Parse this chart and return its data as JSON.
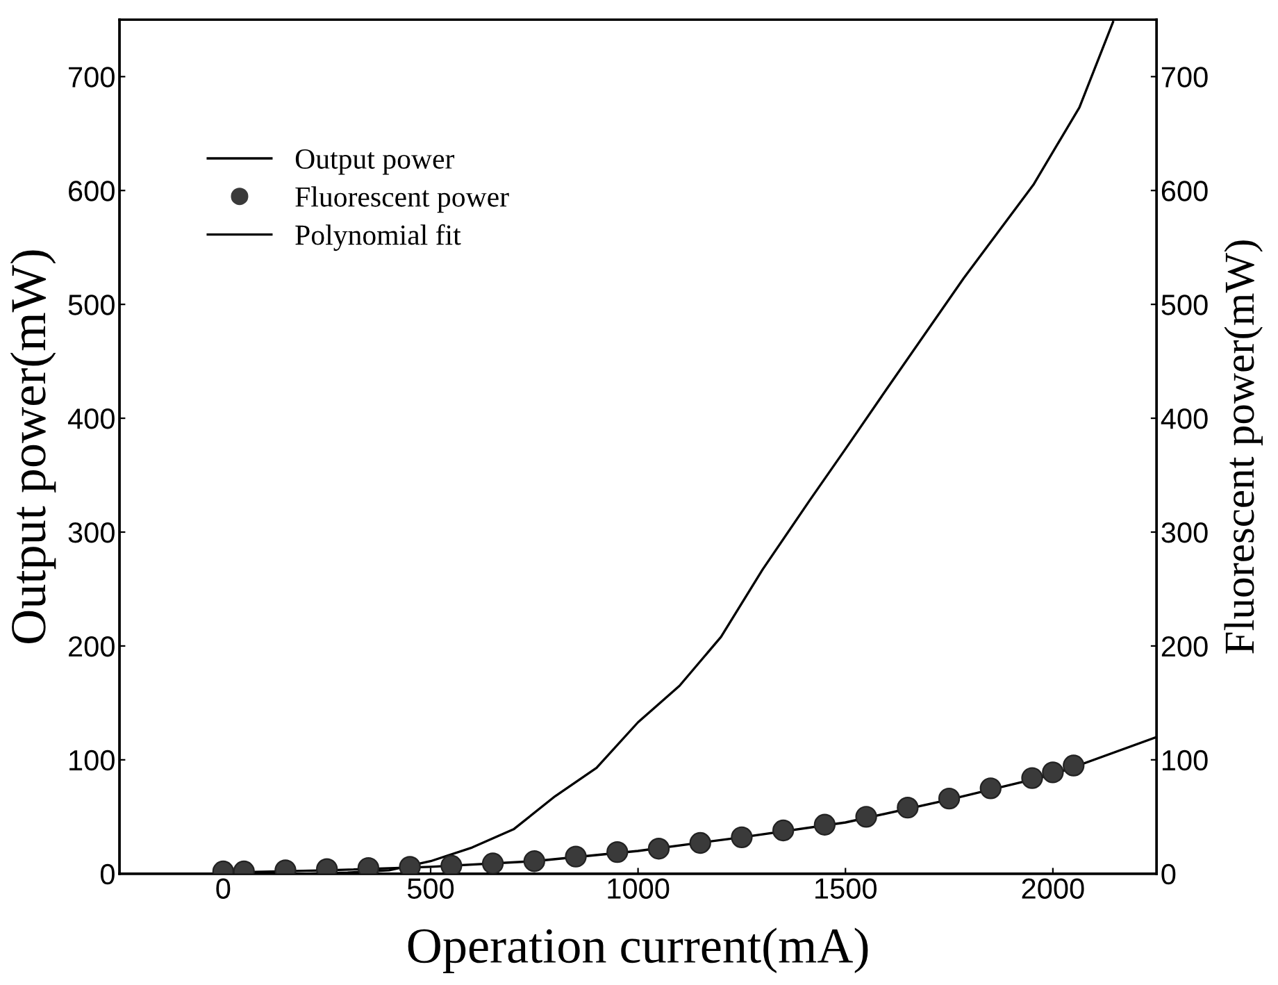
{
  "chart_data": {
    "type": "line",
    "xlabel": "Operation current(mA)",
    "ylabel": "Output power(mW)",
    "y2label": "Fluorescent power(mW)",
    "xlim": [
      -250,
      2250
    ],
    "xticks": [
      0,
      500,
      1000,
      1500,
      2000
    ],
    "ylim": [
      0,
      750
    ],
    "yticks": [
      0,
      100,
      200,
      300,
      400,
      500,
      600,
      700
    ],
    "y2lim": [
      0,
      750
    ],
    "y2ticks": [
      0,
      100,
      200,
      300,
      400,
      500,
      600,
      700
    ],
    "grid": false,
    "legend": "top left",
    "series": [
      {
        "name": "Output power",
        "axis": "y",
        "color": "#000000",
        "x": [
          0,
          100,
          200,
          300,
          400,
          500,
          600,
          700,
          800,
          900,
          1000,
          1100,
          1200,
          1300,
          1414,
          1500,
          1600,
          1785,
          1953,
          2064,
          2145
        ],
        "values": [
          0,
          0,
          0,
          1,
          3,
          11,
          23,
          39,
          68,
          93,
          133,
          165,
          208,
          267,
          328,
          373,
          426,
          523,
          605,
          673,
          748
        ]
      },
      {
        "name": "Fluorescent power",
        "type": "scatter",
        "axis": "y2",
        "color": "#3a3a3a",
        "marker": "circle",
        "x": [
          0,
          50,
          150,
          250,
          350,
          450,
          550,
          650,
          750,
          850,
          950,
          1050,
          1150,
          1250,
          1350,
          1450,
          1550,
          1650,
          1750,
          1850,
          1950,
          2000,
          2050
        ],
        "values": [
          2,
          2,
          3,
          4,
          5,
          6,
          7,
          9,
          11,
          15,
          19,
          22,
          27,
          32,
          38,
          43,
          50,
          58,
          66,
          75,
          84,
          89,
          95
        ]
      },
      {
        "name": "Polynomial fit",
        "type": "line",
        "axis": "y2",
        "color": "#000000",
        "x": [
          0,
          250,
          500,
          750,
          1000,
          1250,
          1500,
          1750,
          2000,
          2250
        ],
        "values": [
          1,
          3,
          6,
          11,
          20,
          32,
          45,
          65,
          87,
          120
        ]
      }
    ]
  }
}
